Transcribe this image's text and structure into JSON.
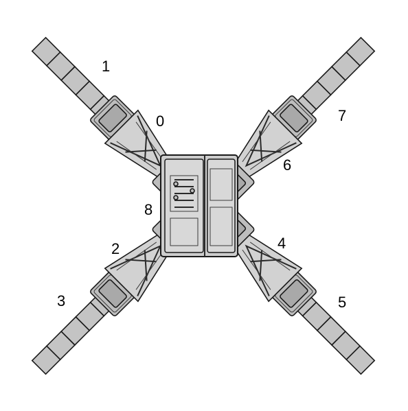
{
  "diagram": {
    "labels": [
      "0",
      "1",
      "2",
      "3",
      "4",
      "5",
      "6",
      "7",
      "8"
    ]
  },
  "colors": {
    "structure": "#c4c4c4",
    "outline": "#1a1a1a",
    "background": "#ffffff"
  }
}
